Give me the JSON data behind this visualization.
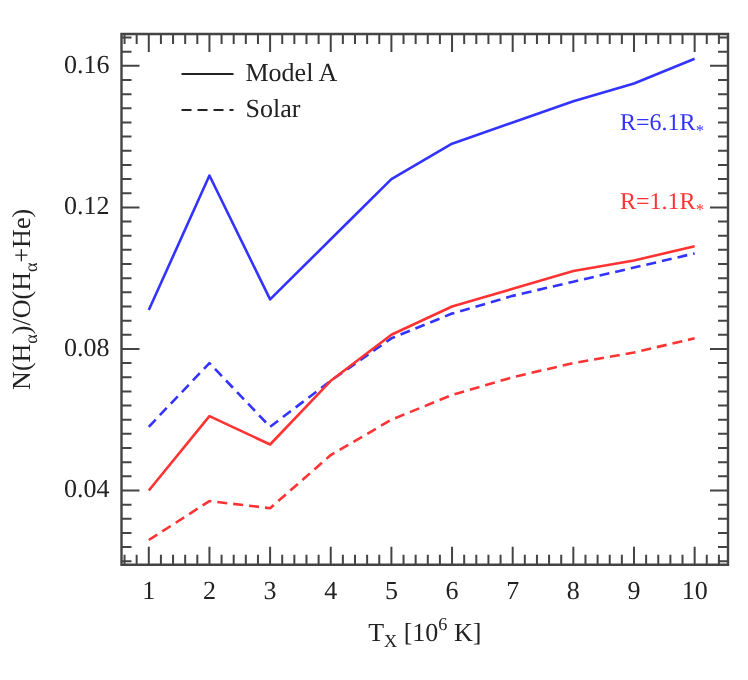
{
  "chart_data": {
    "type": "line",
    "xlabel": "T$_{X}$ [10$^{6}$ K]",
    "ylabel": "N(H$_{α}$)/O(H$_{α}$+He)",
    "x": [
      1,
      2,
      3,
      4,
      5,
      6,
      7,
      8,
      9,
      10
    ],
    "series": [
      {
        "color": "#3333ff",
        "line_style": "solid",
        "values": [
          0.091,
          0.129,
          0.094,
          0.111,
          0.128,
          0.138,
          0.144,
          0.15,
          0.155,
          0.162
        ]
      },
      {
        "color": "#ff3333",
        "line_style": "solid",
        "values": [
          0.04,
          0.061,
          0.053,
          0.071,
          0.084,
          0.092,
          0.097,
          0.102,
          0.105,
          0.109
        ]
      },
      {
        "color": "#3333ff",
        "line_style": "dashed",
        "values": [
          0.058,
          0.076,
          0.058,
          0.071,
          0.083,
          0.09,
          0.095,
          0.099,
          0.103,
          0.107
        ]
      },
      {
        "color": "#ff3333",
        "line_style": "dashed",
        "values": [
          0.026,
          0.037,
          0.035,
          0.05,
          0.06,
          0.067,
          0.072,
          0.076,
          0.079,
          0.083
        ]
      }
    ],
    "annotations": [
      "Model A",
      "Solar",
      "R=6.1R$_{*}$",
      "R=1.1R$_{*}$"
    ],
    "xlim": [
      0.55,
      10.55
    ],
    "ylim": [
      0.019,
      0.169
    ],
    "xticks": [
      {
        "value": 0.6,
        "label": null
      },
      {
        "value": 0.8,
        "label": null
      },
      1,
      {
        "value": 1.2,
        "label": null
      },
      {
        "value": 1.4,
        "label": null
      },
      {
        "value": 1.6,
        "label": null
      },
      {
        "value": 1.8,
        "label": null
      },
      2,
      {
        "value": 2.2,
        "label": null
      },
      {
        "value": 2.4,
        "label": null
      },
      {
        "value": 2.6,
        "label": null
      },
      {
        "value": 2.8,
        "label": null
      },
      3,
      {
        "value": 3.2,
        "label": null
      },
      {
        "value": 3.4,
        "label": null
      },
      {
        "value": 3.6,
        "label": null
      },
      {
        "value": 3.8,
        "label": null
      },
      4,
      {
        "value": 4.2,
        "label": null
      },
      {
        "value": 4.4,
        "label": null
      },
      {
        "value": 4.6,
        "label": null
      },
      {
        "value": 4.8,
        "label": null
      },
      5,
      {
        "value": 5.2,
        "label": null
      },
      {
        "value": 5.4,
        "label": null
      },
      {
        "value": 5.6,
        "label": null
      },
      {
        "value": 5.8,
        "label": null
      },
      6,
      {
        "value": 6.2,
        "label": null
      },
      {
        "value": 6.4,
        "label": null
      },
      {
        "value": 6.6,
        "label": null
      },
      {
        "value": 6.8,
        "label": null
      },
      7,
      {
        "value": 7.2,
        "label": null
      },
      {
        "value": 7.4,
        "label": null
      },
      {
        "value": 7.6,
        "label": null
      },
      {
        "value": 7.8,
        "label": null
      },
      8,
      {
        "value": 8.2,
        "label": null
      },
      {
        "value": 8.4,
        "label": null
      },
      {
        "value": 8.6,
        "label": null
      },
      {
        "value": 8.8,
        "label": null
      },
      9,
      {
        "value": 9.2,
        "label": null
      },
      {
        "value": 9.4,
        "label": null
      },
      {
        "value": 9.6,
        "label": null
      },
      {
        "value": 9.8,
        "label": null
      },
      10,
      {
        "value": 10.2,
        "label": null
      },
      {
        "value": 10.4,
        "label": null
      }
    ],
    "yticks": [
      {
        "value": 0.02,
        "label": null
      },
      {
        "value": 0.024,
        "label": null
      },
      {
        "value": 0.028,
        "label": null
      },
      {
        "value": 0.032,
        "label": null
      },
      {
        "value": 0.036,
        "label": null
      },
      {
        "value": 0.04,
        "label": "0.04"
      },
      {
        "value": 0.044,
        "label": null
      },
      {
        "value": 0.048,
        "label": null
      },
      {
        "value": 0.052,
        "label": null
      },
      {
        "value": 0.056,
        "label": null
      },
      {
        "value": 0.06,
        "label": null
      },
      {
        "value": 0.064,
        "label": null
      },
      {
        "value": 0.068,
        "label": null
      },
      {
        "value": 0.072,
        "label": null
      },
      {
        "value": 0.076,
        "label": null
      },
      {
        "value": 0.08,
        "label": "0.08"
      },
      {
        "value": 0.084,
        "label": null
      },
      {
        "value": 0.088,
        "label": null
      },
      {
        "value": 0.092,
        "label": null
      },
      {
        "value": 0.096,
        "label": null
      },
      {
        "value": 0.1,
        "label": null
      },
      {
        "value": 0.104,
        "label": null
      },
      {
        "value": 0.108,
        "label": null
      },
      {
        "value": 0.112,
        "label": null
      },
      {
        "value": 0.116,
        "label": null
      },
      {
        "value": 0.12,
        "label": "0.12"
      },
      {
        "value": 0.124,
        "label": null
      },
      {
        "value": 0.128,
        "label": null
      },
      {
        "value": 0.132,
        "label": null
      },
      {
        "value": 0.136,
        "label": null
      },
      {
        "value": 0.14,
        "label": null
      },
      {
        "value": 0.144,
        "label": null
      },
      {
        "value": 0.148,
        "label": null
      },
      {
        "value": 0.152,
        "label": null
      },
      {
        "value": 0.156,
        "label": null
      },
      {
        "value": 0.16,
        "label": "0.16"
      },
      {
        "value": 0.164,
        "label": null
      },
      {
        "value": 0.168,
        "label": null
      }
    ],
    "grid": false,
    "marker": "none"
  }
}
